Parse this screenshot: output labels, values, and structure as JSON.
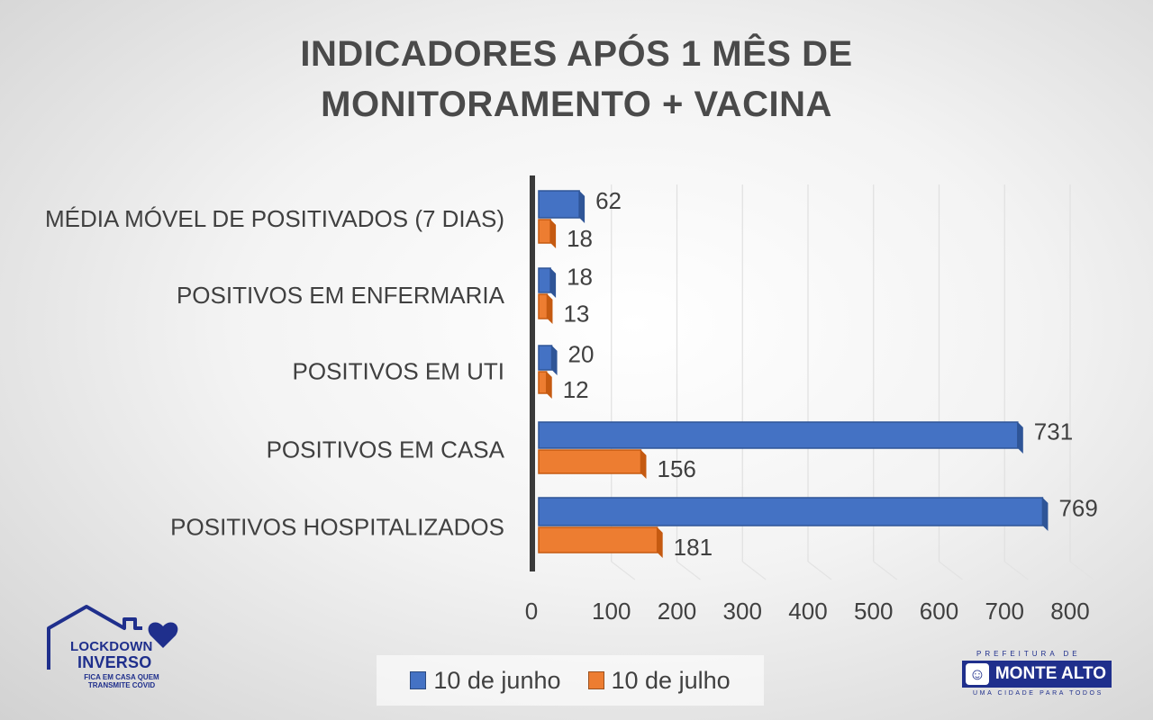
{
  "chart_data": {
    "type": "bar",
    "orientation": "horizontal",
    "title_lines": [
      "INDICADORES APÓS 1 MÊS DE",
      "MONITORAMENTO + VACINA"
    ],
    "categories": [
      "MÉDIA MÓVEL DE POSITIVADOS (7 DIAS)",
      "POSITIVOS EM ENFERMARIA",
      "POSITIVOS EM UTI",
      "POSITIVOS EM CASA",
      "POSITIVOS HOSPITALIZADOS"
    ],
    "series": [
      {
        "name": "10 de junho",
        "values": [
          62,
          18,
          20,
          731,
          769
        ],
        "color": "#4472c4",
        "edge": "#2f5597"
      },
      {
        "name": "10 de julho",
        "values": [
          18,
          13,
          12,
          156,
          181
        ],
        "color": "#ed7d31",
        "edge": "#c55a11"
      }
    ],
    "xlim": [
      0,
      800
    ],
    "xticks": [
      "0",
      "100",
      "200",
      "300",
      "400",
      "500",
      "600",
      "700",
      "800"
    ],
    "xtick_values": [
      0,
      100,
      200,
      300,
      400,
      500,
      600,
      700,
      800
    ],
    "grid": true,
    "legend_position": "bottom"
  },
  "logos": {
    "lockdown": {
      "line1": "LOCKDOWN",
      "line2": "INVERSO",
      "tagline": "FICA EM CASA QUEM TRANSMITE COVID"
    },
    "monte_alto": {
      "prefix": "PREFEITURA DE",
      "name": "MONTE ALTO",
      "slogan": "UMA CIDADE PARA TODOS"
    }
  },
  "colors": {
    "title": "#4a4a4a",
    "logo_blue": "#1f2f8c"
  }
}
